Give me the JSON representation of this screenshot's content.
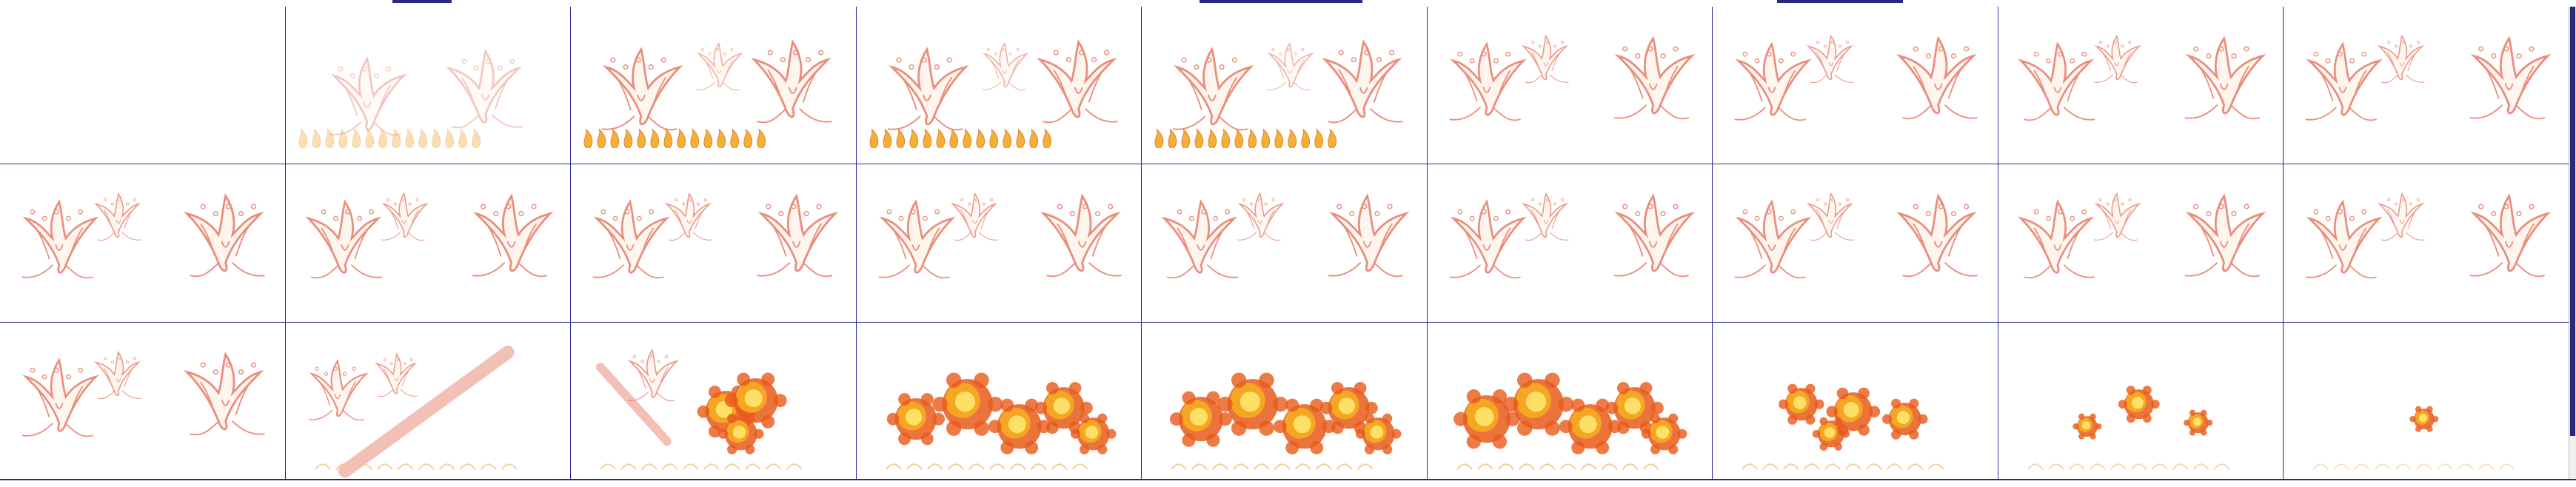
{
  "window": {
    "title": "",
    "status": ""
  },
  "sheet": {
    "columns": 9,
    "rows": 3,
    "frames": [
      {
        "label": "frame-1",
        "kind": "empty"
      },
      {
        "label": "frame-2",
        "kind": "birds-faint"
      },
      {
        "label": "frame-3",
        "kind": "birds-flame"
      },
      {
        "label": "frame-4",
        "kind": "birds-flame"
      },
      {
        "label": "frame-5",
        "kind": "birds-flame"
      },
      {
        "label": "frame-6",
        "kind": "birds"
      },
      {
        "label": "frame-7",
        "kind": "birds"
      },
      {
        "label": "frame-8",
        "kind": "birds"
      },
      {
        "label": "frame-9",
        "kind": "birds"
      },
      {
        "label": "frame-10",
        "kind": "birds"
      },
      {
        "label": "frame-11",
        "kind": "birds"
      },
      {
        "label": "frame-12",
        "kind": "birds"
      },
      {
        "label": "frame-13",
        "kind": "birds"
      },
      {
        "label": "frame-14",
        "kind": "birds"
      },
      {
        "label": "frame-15",
        "kind": "birds"
      },
      {
        "label": "frame-16",
        "kind": "birds"
      },
      {
        "label": "frame-17",
        "kind": "birds"
      },
      {
        "label": "frame-18",
        "kind": "birds"
      },
      {
        "label": "frame-19",
        "kind": "birds"
      },
      {
        "label": "frame-20",
        "kind": "birds-beam"
      },
      {
        "label": "frame-21",
        "kind": "explosion-start"
      },
      {
        "label": "frame-22",
        "kind": "explosion-full"
      },
      {
        "label": "frame-23",
        "kind": "explosion-full"
      },
      {
        "label": "frame-24",
        "kind": "explosion-full"
      },
      {
        "label": "frame-25",
        "kind": "explosion-fade"
      },
      {
        "label": "frame-26",
        "kind": "explosion-small"
      },
      {
        "label": "frame-27",
        "kind": "explosion-tiny"
      }
    ]
  },
  "colors": {
    "grid": "#2a2a9a",
    "accent": "#2a2a7a",
    "bird": "#e8826e",
    "flame": "#f5a623",
    "fire": "#e85a1a",
    "core": "#ffe066"
  }
}
